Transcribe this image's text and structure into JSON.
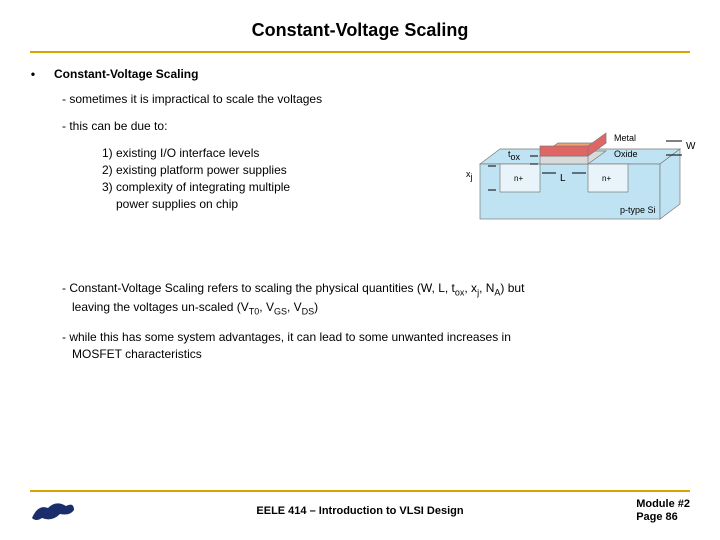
{
  "colors": {
    "rule": "#d9a300",
    "text": "#000000",
    "logo_blue": "#1a2e6b",
    "diagram_substrate": "#bfe3f2",
    "diagram_oxide": "#d9d9d9",
    "diagram_metal": "#e06666",
    "diagram_metal_top": "#f4a26c",
    "diagram_outline": "#7a7a7a",
    "diagram_label": "#000000",
    "diagram_nplus": "#e8f4fa"
  },
  "title": "Constant-Voltage Scaling",
  "section_heading": "Constant-Voltage Scaling",
  "line_impractical": "- sometimes it is impractical to scale the voltages",
  "line_due_to": "- this can be due to:",
  "reasons": {
    "r1": "1) existing I/O interface levels",
    "r2": "2) existing platform power supplies",
    "r3a": "3) complexity of integrating multiple",
    "r3b": "power supplies on chip"
  },
  "para_defn_html": "- Constant-Voltage Scaling refers to scaling the physical quantities (W, L, t<sub>ox</sub>, x<sub>j</sub>, N<sub>A</sub>) but",
  "para_defn_line2_html": "leaving the voltages un-scaled (V<sub>T0</sub>, V<sub>GS</sub>, V<sub>DS</sub>)",
  "para_adv": "- while this has some system advantages, it can lead to some unwanted increases in",
  "para_adv_line2": "MOSFET characteristics",
  "diagram": {
    "label_metal": "Metal",
    "label_oxide": "Oxide",
    "label_W": "W",
    "label_L": "L",
    "label_tox_html": "t<sub>ox</sub>",
    "label_xj_html": "x<sub>j</sub>",
    "label_nplus": "n+",
    "label_substrate": "p-type Si"
  },
  "footer": {
    "course": "EELE 414 – Introduction to VLSI Design",
    "module": "Module #2",
    "page": "Page 86"
  }
}
